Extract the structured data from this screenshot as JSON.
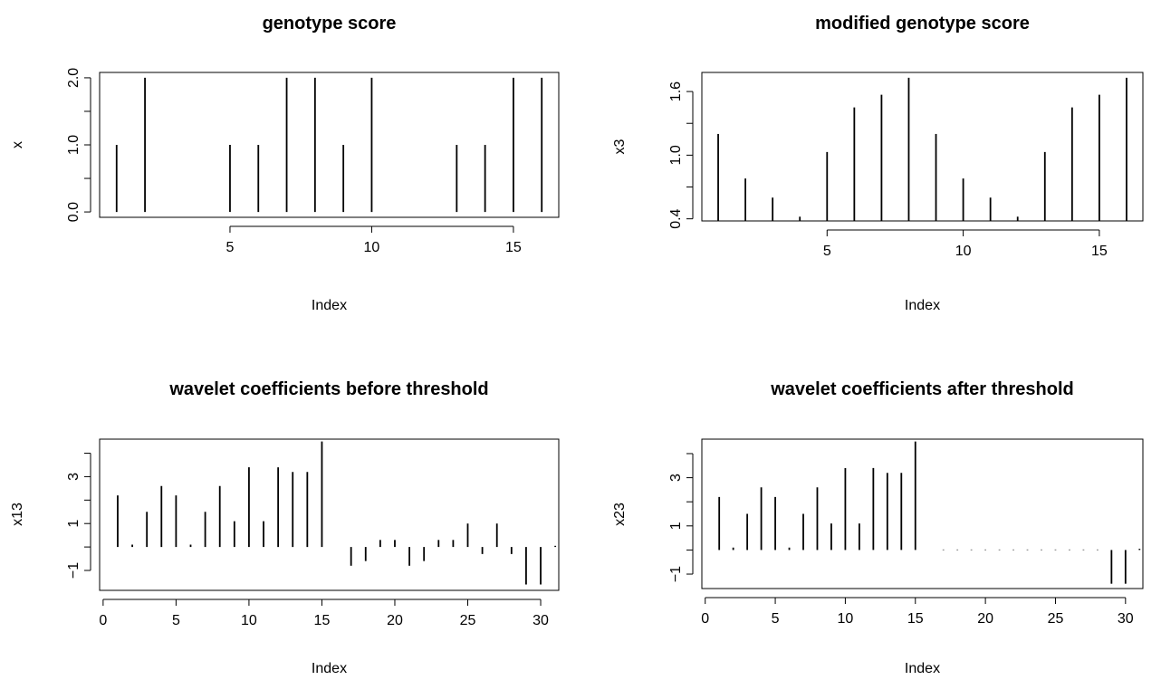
{
  "figure": {
    "background": "#ffffff",
    "ink": "#000000"
  },
  "chart_data": [
    {
      "type": "bar",
      "style": "histogram-lines",
      "title": "genotype score",
      "xlabel": "Index",
      "ylabel": "x",
      "x": [
        1,
        2,
        3,
        4,
        5,
        6,
        7,
        8,
        9,
        10,
        11,
        12,
        13,
        14,
        15,
        16
      ],
      "values": [
        1,
        2,
        0,
        0,
        1,
        1,
        2,
        2,
        1,
        2,
        0,
        0,
        1,
        1,
        2,
        2
      ],
      "xlim": [
        0.4,
        16.6
      ],
      "ylim": [
        -0.08,
        2.08
      ],
      "xticks": [
        5,
        10,
        15
      ],
      "xtick_labels": [
        "5",
        "10",
        "15"
      ],
      "yticks": [
        0,
        0.5,
        1,
        1.5,
        2
      ],
      "ytick_labels": [
        "0.0",
        "",
        "1.0",
        "",
        "2.0"
      ],
      "grid": false
    },
    {
      "type": "bar",
      "style": "histogram-lines",
      "title": "modified genotype score",
      "xlabel": "Index",
      "ylabel": "x3",
      "x": [
        1,
        2,
        3,
        4,
        5,
        6,
        7,
        8,
        9,
        10,
        11,
        12,
        13,
        14,
        15,
        16
      ],
      "values": [
        1.2,
        0.78,
        0.6,
        0.42,
        1.03,
        1.45,
        1.57,
        1.73,
        1.2,
        0.78,
        0.6,
        0.42,
        1.03,
        1.45,
        1.57,
        1.73
      ],
      "xlim": [
        0.4,
        16.6
      ],
      "ylim": [
        0.38,
        1.78
      ],
      "xticks": [
        5,
        10,
        15
      ],
      "xtick_labels": [
        "5",
        "10",
        "15"
      ],
      "yticks": [
        0.4,
        0.7,
        1.0,
        1.3,
        1.6
      ],
      "ytick_labels": [
        "0.4",
        "",
        "1.0",
        "",
        "1.6"
      ],
      "grid": false
    },
    {
      "type": "bar",
      "style": "histogram-lines",
      "title": "wavelet coefficients before threshold",
      "xlabel": "Index",
      "ylabel": "x13",
      "x": [
        1,
        2,
        3,
        4,
        5,
        6,
        7,
        8,
        9,
        10,
        11,
        12,
        13,
        14,
        15,
        16,
        17,
        18,
        19,
        20,
        21,
        22,
        23,
        24,
        25,
        26,
        27,
        28,
        29,
        30,
        31
      ],
      "values": [
        2.2,
        0.1,
        1.5,
        2.6,
        2.2,
        0.1,
        1.5,
        2.6,
        1.1,
        3.4,
        1.1,
        3.4,
        3.2,
        3.2,
        4.5,
        0.0,
        -0.8,
        -0.6,
        0.3,
        0.3,
        -0.8,
        -0.6,
        0.3,
        0.3,
        1.0,
        -0.3,
        1.0,
        -0.3,
        -1.6,
        -1.6,
        0.05
      ],
      "xlim": [
        -0.24,
        31.24
      ],
      "ylim": [
        -1.85,
        4.6
      ],
      "xticks": [
        0,
        5,
        10,
        15,
        20,
        25,
        30
      ],
      "xtick_labels": [
        "0",
        "5",
        "10",
        "15",
        "20",
        "25",
        "30"
      ],
      "yticks": [
        -1,
        0,
        1,
        2,
        3,
        4
      ],
      "ytick_labels": [
        "−1",
        "",
        "1",
        "",
        "3",
        ""
      ],
      "grid": false
    },
    {
      "type": "bar",
      "style": "histogram-lines",
      "title": "wavelet coefficients after threshold",
      "xlabel": "Index",
      "ylabel": "x23",
      "x": [
        1,
        2,
        3,
        4,
        5,
        6,
        7,
        8,
        9,
        10,
        11,
        12,
        13,
        14,
        15,
        16,
        17,
        18,
        19,
        20,
        21,
        22,
        23,
        24,
        25,
        26,
        27,
        28,
        29,
        30,
        31
      ],
      "values": [
        2.2,
        0.1,
        1.5,
        2.6,
        2.2,
        0.1,
        1.5,
        2.6,
        1.1,
        3.4,
        1.1,
        3.4,
        3.2,
        3.2,
        4.5,
        0.0,
        0.02,
        0.02,
        0.02,
        0.02,
        0.02,
        0.02,
        0.02,
        0.02,
        0.02,
        0.02,
        0.02,
        0.02,
        -1.4,
        -1.4,
        0.05
      ],
      "xlim": [
        -0.24,
        31.24
      ],
      "ylim": [
        -1.6,
        4.6
      ],
      "xticks": [
        0,
        5,
        10,
        15,
        20,
        25,
        30
      ],
      "xtick_labels": [
        "0",
        "5",
        "10",
        "15",
        "20",
        "25",
        "30"
      ],
      "yticks": [
        -1,
        0,
        1,
        2,
        3,
        4
      ],
      "ytick_labels": [
        "−1",
        "",
        "1",
        "",
        "3",
        ""
      ],
      "grid": false
    }
  ]
}
